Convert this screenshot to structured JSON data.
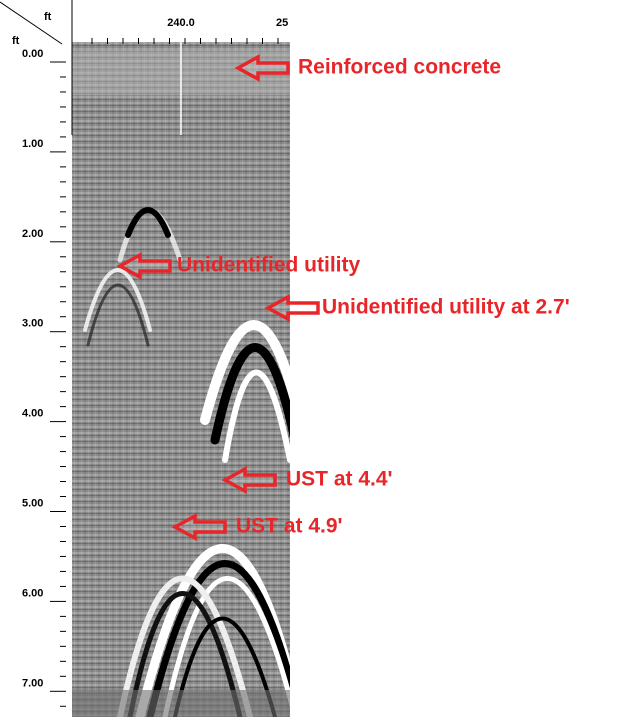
{
  "axis": {
    "x_unit": "ft",
    "y_unit": "ft",
    "x_labels": [
      "240.0",
      "25"
    ],
    "y_labels": [
      "0.00",
      "1.00",
      "2.00",
      "3.00",
      "4.00",
      "5.00",
      "6.00",
      "7.00"
    ]
  },
  "annotations": [
    "Reinforced concrete",
    "Unidentified utility",
    "Unidentified utility at 2.7'",
    "UST at 4.4'",
    "UST at 4.9'"
  ]
}
